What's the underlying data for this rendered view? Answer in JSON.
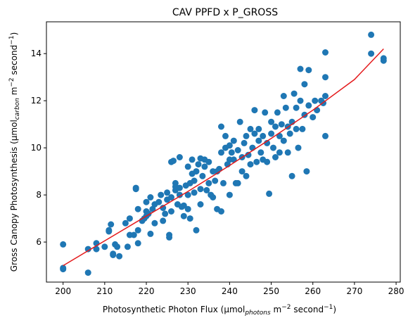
{
  "chart_data": {
    "type": "scatter",
    "title": "CAV PPFD x P_GROSS",
    "xlabel": {
      "base": "Photosynthetic Photon Flux (µmol",
      "sub": "photons",
      "mid": " m",
      "sup1": "−2",
      "mid2": " second",
      "sup2": "−1",
      "end": ")"
    },
    "ylabel": {
      "base": "Gross Canopy Photosynthesis (µmol",
      "sub": "carbon",
      "mid": " m",
      "sup1": "−2",
      "mid2": " second",
      "sup2": "−1",
      "end": ")"
    },
    "xlim": [
      196,
      281
    ],
    "ylim": [
      4.3,
      15.35
    ],
    "xticks": [
      200,
      210,
      220,
      230,
      240,
      250,
      260,
      270,
      280
    ],
    "yticks": [
      6,
      8,
      10,
      12,
      14
    ],
    "grid": false,
    "colors": {
      "points": "#1f77b4",
      "fit": "#e41a1c"
    },
    "fit_line": {
      "x": [
        200,
        210,
        220,
        230,
        240,
        250,
        260,
        270,
        277
      ],
      "y": [
        5.0,
        6.05,
        7.1,
        8.15,
        9.25,
        10.4,
        11.6,
        12.9,
        14.2
      ]
    },
    "points": [
      [
        200,
        5.9
      ],
      [
        200,
        4.85
      ],
      [
        200,
        4.9
      ],
      [
        206,
        5.7
      ],
      [
        206,
        4.7
      ],
      [
        208,
        5.7
      ],
      [
        208,
        5.95
      ],
      [
        210,
        5.8
      ],
      [
        211,
        6.45
      ],
      [
        211,
        6.5
      ],
      [
        211.5,
        6.75
      ],
      [
        212,
        5.45
      ],
      [
        212,
        5.5
      ],
      [
        212.5,
        5.9
      ],
      [
        213,
        5.8
      ],
      [
        213.5,
        5.4
      ],
      [
        215,
        6.8
      ],
      [
        215.5,
        5.8
      ],
      [
        216,
        6.3
      ],
      [
        216,
        7.0
      ],
      [
        217,
        6.3
      ],
      [
        217.5,
        8.3
      ],
      [
        217.5,
        8.25
      ],
      [
        218,
        7.4
      ],
      [
        218,
        6.5
      ],
      [
        218,
        5.95
      ],
      [
        219,
        6.9
      ],
      [
        219.5,
        7.0
      ],
      [
        220,
        7.3
      ],
      [
        220,
        7.7
      ],
      [
        220,
        7.1
      ],
      [
        220.5,
        7.2
      ],
      [
        221,
        6.35
      ],
      [
        221,
        7.9
      ],
      [
        221.5,
        7.4
      ],
      [
        222,
        7.6
      ],
      [
        222,
        6.8
      ],
      [
        223,
        7.7
      ],
      [
        223.5,
        8.0
      ],
      [
        224,
        6.9
      ],
      [
        224,
        7.45
      ],
      [
        224.5,
        7.2
      ],
      [
        225,
        8.1
      ],
      [
        225,
        7.8
      ],
      [
        225.5,
        6.3
      ],
      [
        225.5,
        6.2
      ],
      [
        226,
        7.9
      ],
      [
        226,
        7.3
      ],
      [
        226,
        9.4
      ],
      [
        226.5,
        9.45
      ],
      [
        227,
        8.2
      ],
      [
        227,
        8.35
      ],
      [
        227,
        8.5
      ],
      [
        227.5,
        7.6
      ],
      [
        228,
        8.0
      ],
      [
        228,
        9.6
      ],
      [
        228,
        8.3
      ],
      [
        228.5,
        7.5
      ],
      [
        229,
        7.1
      ],
      [
        229,
        7.55
      ],
      [
        229.5,
        8.4
      ],
      [
        230,
        7.4
      ],
      [
        230,
        8.0
      ],
      [
        230,
        9.2
      ],
      [
        230.5,
        8.5
      ],
      [
        230.5,
        7.0
      ],
      [
        231,
        9.5
      ],
      [
        231,
        8.9
      ],
      [
        231.5,
        8.1
      ],
      [
        231.5,
        8.6
      ],
      [
        232,
        6.5
      ],
      [
        232,
        9.0
      ],
      [
        232.5,
        9.3
      ],
      [
        233,
        9.55
      ],
      [
        233,
        8.25
      ],
      [
        233,
        7.6
      ],
      [
        233.5,
        8.8
      ],
      [
        234,
        9.2
      ],
      [
        234,
        9.5
      ],
      [
        234.5,
        8.2
      ],
      [
        235,
        9.4
      ],
      [
        235,
        8.5
      ],
      [
        235.5,
        8.0
      ],
      [
        236,
        9.0
      ],
      [
        236,
        7.9
      ],
      [
        236.5,
        8.6
      ],
      [
        237,
        9.0
      ],
      [
        237,
        7.4
      ],
      [
        237.5,
        9.1
      ],
      [
        238,
        9.8
      ],
      [
        238,
        10.9
      ],
      [
        238,
        7.3
      ],
      [
        238.5,
        8.5
      ],
      [
        239,
        10.0
      ],
      [
        239,
        10.5
      ],
      [
        239.5,
        9.3
      ],
      [
        240,
        9.5
      ],
      [
        240,
        10.1
      ],
      [
        240,
        8.0
      ],
      [
        240.5,
        9.8
      ],
      [
        241,
        9.5
      ],
      [
        241,
        10.3
      ],
      [
        241.5,
        8.5
      ],
      [
        242,
        9.9
      ],
      [
        242,
        8.5
      ],
      [
        242.5,
        11.1
      ],
      [
        243,
        9.6
      ],
      [
        243,
        9.0
      ],
      [
        243.5,
        10.2
      ],
      [
        244,
        10.5
      ],
      [
        244,
        8.8
      ],
      [
        244.5,
        9.7
      ],
      [
        245,
        10.8
      ],
      [
        245,
        9.3
      ],
      [
        245.5,
        10.0
      ],
      [
        246,
        11.6
      ],
      [
        246,
        10.6
      ],
      [
        246.5,
        9.4
      ],
      [
        247,
        10.3
      ],
      [
        247,
        10.8
      ],
      [
        247.5,
        9.8
      ],
      [
        248,
        10.5
      ],
      [
        248,
        9.5
      ],
      [
        248.5,
        11.5
      ],
      [
        249,
        10.2
      ],
      [
        249,
        9.4
      ],
      [
        249.5,
        8.05
      ],
      [
        250,
        10.6
      ],
      [
        250,
        11.1
      ],
      [
        250.5,
        10.0
      ],
      [
        251,
        10.9
      ],
      [
        251,
        9.6
      ],
      [
        251.5,
        11.5
      ],
      [
        252,
        10.5
      ],
      [
        252,
        9.8
      ],
      [
        252.5,
        11.0
      ],
      [
        253,
        10.3
      ],
      [
        253,
        12.2
      ],
      [
        253.5,
        11.7
      ],
      [
        254,
        10.9
      ],
      [
        254,
        9.8
      ],
      [
        254.5,
        10.6
      ],
      [
        255,
        11.1
      ],
      [
        255,
        8.8
      ],
      [
        255.5,
        12.3
      ],
      [
        256,
        10.8
      ],
      [
        256,
        11.7
      ],
      [
        256.5,
        10.0
      ],
      [
        257,
        13.35
      ],
      [
        257,
        12.0
      ],
      [
        257.5,
        10.8
      ],
      [
        258,
        11.4
      ],
      [
        258,
        12.7
      ],
      [
        258.5,
        9.0
      ],
      [
        259,
        13.3
      ],
      [
        259,
        11.8
      ],
      [
        260,
        11.3
      ],
      [
        260.5,
        12.0
      ],
      [
        261,
        11.6
      ],
      [
        262,
        12.0
      ],
      [
        262.5,
        11.9
      ],
      [
        263,
        14.05
      ],
      [
        263,
        13.0
      ],
      [
        263,
        12.2
      ],
      [
        263,
        10.5
      ],
      [
        274,
        14.8
      ],
      [
        274,
        14.0
      ],
      [
        277,
        13.8
      ],
      [
        277,
        13.7
      ]
    ]
  }
}
